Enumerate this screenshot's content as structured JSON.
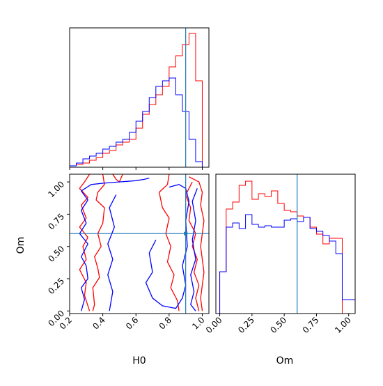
{
  "chart_data": {
    "type": "corner",
    "parameters": [
      "H0",
      "Om"
    ],
    "truth": {
      "H0": 0.9,
      "Om": 0.6
    },
    "colors": {
      "red": "#ff0000",
      "blue": "#0000ff",
      "truth": "#1f77b4"
    },
    "axes": {
      "H0": {
        "xlim": [
          0.2,
          1.04
        ],
        "ticks": [
          "0.2",
          "0.4",
          "0.6",
          "0.8",
          "1.0"
        ],
        "label": "H0"
      },
      "Om": {
        "xlim": [
          -0.03,
          1.05
        ],
        "ticks": [
          "0.00",
          "0.25",
          "0.50",
          "0.75",
          "1.00"
        ],
        "label": "Om"
      },
      "Om_y": {
        "ylim": [
          -0.02,
          1.06
        ],
        "ticks": [
          "0.00",
          "0.25",
          "0.50",
          "0.75",
          "1.00"
        ],
        "label": "Om"
      }
    },
    "series": [
      {
        "name": "",
        "color": "#ff0000",
        "hist_H0": {
          "edges": [
            0.2,
            0.24,
            0.28,
            0.32,
            0.36,
            0.4,
            0.44,
            0.48,
            0.52,
            0.56,
            0.6,
            0.64,
            0.68,
            0.72,
            0.76,
            0.8,
            0.84,
            0.88,
            0.92,
            0.96,
            1.0,
            1.04
          ],
          "values": [
            0.01,
            0.02,
            0.03,
            0.05,
            0.07,
            0.1,
            0.12,
            0.16,
            0.18,
            0.2,
            0.28,
            0.38,
            0.45,
            0.52,
            0.58,
            0.72,
            0.8,
            0.88,
            0.96,
            0.62,
            0.0
          ]
        },
        "hist_Om": {
          "edges": [
            0.0,
            0.05,
            0.1,
            0.15,
            0.2,
            0.25,
            0.3,
            0.35,
            0.4,
            0.45,
            0.5,
            0.55,
            0.6,
            0.65,
            0.7,
            0.75,
            0.8,
            0.85,
            0.9,
            0.95,
            1.0,
            1.05
          ],
          "values": [
            0.3,
            0.75,
            0.8,
            0.92,
            0.95,
            0.82,
            0.86,
            0.84,
            0.88,
            0.79,
            0.74,
            0.73,
            0.7,
            0.69,
            0.62,
            0.57,
            0.5,
            0.54,
            0.54,
            0.0,
            0.0
          ]
        }
      },
      {
        "name": "",
        "color": "#0000ff",
        "hist_H0": {
          "edges": [
            0.2,
            0.24,
            0.28,
            0.32,
            0.36,
            0.4,
            0.44,
            0.48,
            0.52,
            0.56,
            0.6,
            0.64,
            0.68,
            0.72,
            0.76,
            0.8,
            0.84,
            0.88,
            0.92,
            0.96,
            1.0,
            1.04
          ],
          "values": [
            0.01,
            0.03,
            0.06,
            0.08,
            0.1,
            0.13,
            0.15,
            0.18,
            0.2,
            0.25,
            0.33,
            0.4,
            0.5,
            0.58,
            0.62,
            0.64,
            0.52,
            0.4,
            0.2,
            0.04,
            0.0
          ]
        },
        "hist_Om": {
          "edges": [
            0.0,
            0.05,
            0.1,
            0.15,
            0.2,
            0.25,
            0.3,
            0.35,
            0.4,
            0.45,
            0.5,
            0.55,
            0.6,
            0.65,
            0.7,
            0.75,
            0.8,
            0.85,
            0.9,
            0.95,
            1.0,
            1.05
          ],
          "values": [
            0.3,
            0.62,
            0.65,
            0.61,
            0.71,
            0.64,
            0.62,
            0.63,
            0.62,
            0.62,
            0.67,
            0.68,
            0.66,
            0.69,
            0.61,
            0.59,
            0.56,
            0.52,
            0.43,
            0.1,
            0.1
          ]
        }
      }
    ],
    "contours_2d": [
      {
        "color": "#ff0000",
        "paths": [
          [
            [
              0.32,
              1.06
            ],
            [
              0.29,
              1.0
            ],
            [
              0.26,
              0.95
            ],
            [
              0.31,
              0.88
            ],
            [
              0.27,
              0.82
            ],
            [
              0.3,
              0.72
            ],
            [
              0.26,
              0.65
            ],
            [
              0.31,
              0.57
            ],
            [
              0.28,
              0.5
            ],
            [
              0.3,
              0.4
            ],
            [
              0.26,
              0.32
            ],
            [
              0.3,
              0.22
            ],
            [
              0.29,
              0.12
            ],
            [
              0.32,
              0.0
            ]
          ],
          [
            [
              0.4,
              1.06
            ],
            [
              0.41,
              0.98
            ],
            [
              0.37,
              0.92
            ],
            [
              0.36,
              0.86
            ],
            [
              0.41,
              0.8
            ],
            [
              0.4,
              0.68
            ],
            [
              0.37,
              0.6
            ],
            [
              0.39,
              0.5
            ],
            [
              0.35,
              0.42
            ],
            [
              0.37,
              0.33
            ],
            [
              0.38,
              0.26
            ],
            [
              0.34,
              0.18
            ],
            [
              0.35,
              0.05
            ],
            [
              0.34,
              0.0
            ]
          ],
          [
            [
              0.46,
              1.06
            ],
            [
              0.48,
              1.02
            ],
            [
              0.5,
              1.0
            ],
            [
              0.52,
              1.06
            ]
          ],
          [
            [
              0.8,
              1.06
            ],
            [
              0.79,
              0.98
            ],
            [
              0.74,
              0.92
            ],
            [
              0.76,
              0.8
            ],
            [
              0.8,
              0.72
            ],
            [
              0.78,
              0.6
            ],
            [
              0.81,
              0.5
            ],
            [
              0.79,
              0.38
            ],
            [
              0.83,
              0.28
            ],
            [
              0.81,
              0.18
            ],
            [
              0.85,
              0.08
            ],
            [
              0.86,
              0.0
            ]
          ],
          [
            [
              0.94,
              1.0
            ],
            [
              0.9,
              0.9
            ],
            [
              0.93,
              0.8
            ],
            [
              0.92,
              0.7
            ],
            [
              0.96,
              0.6
            ],
            [
              0.94,
              0.5
            ],
            [
              0.97,
              0.4
            ],
            [
              0.95,
              0.3
            ],
            [
              0.98,
              0.2
            ],
            [
              0.96,
              0.1
            ],
            [
              0.98,
              0.0
            ]
          ],
          [
            [
              0.92,
              1.04
            ],
            [
              0.98,
              1.0
            ],
            [
              1.0,
              0.92
            ],
            [
              0.99,
              0.82
            ],
            [
              1.01,
              0.7
            ],
            [
              0.99,
              0.5
            ],
            [
              1.01,
              0.3
            ],
            [
              0.99,
              0.1
            ],
            [
              1.0,
              0.0
            ]
          ]
        ]
      },
      {
        "color": "#0000ff",
        "paths": [
          [
            [
              0.3,
              0.35
            ],
            [
              0.27,
              0.42
            ],
            [
              0.31,
              0.52
            ],
            [
              0.26,
              0.6
            ],
            [
              0.3,
              0.68
            ],
            [
              0.27,
              0.78
            ],
            [
              0.31,
              0.86
            ],
            [
              0.27,
              0.93
            ],
            [
              0.33,
              0.98
            ],
            [
              0.4,
              0.99
            ],
            [
              0.5,
              1.0
            ],
            [
              0.6,
              1.01
            ],
            [
              0.65,
              1.02
            ],
            [
              0.68,
              1.03
            ]
          ],
          [
            [
              0.3,
              0.35
            ],
            [
              0.31,
              0.25
            ],
            [
              0.27,
              0.18
            ],
            [
              0.29,
              0.09
            ],
            [
              0.27,
              0.0
            ]
          ],
          [
            [
              0.48,
              0.9
            ],
            [
              0.44,
              0.8
            ],
            [
              0.47,
              0.65
            ],
            [
              0.43,
              0.52
            ],
            [
              0.46,
              0.4
            ],
            [
              0.43,
              0.28
            ],
            [
              0.46,
              0.15
            ],
            [
              0.44,
              0.0
            ]
          ],
          [
            [
              0.72,
              0.55
            ],
            [
              0.68,
              0.45
            ],
            [
              0.7,
              0.3
            ],
            [
              0.66,
              0.22
            ],
            [
              0.7,
              0.1
            ],
            [
              0.76,
              0.04
            ],
            [
              0.84,
              0.02
            ],
            [
              0.88,
              0.1
            ],
            [
              0.9,
              0.2
            ],
            [
              0.88,
              0.35
            ],
            [
              0.91,
              0.5
            ],
            [
              0.9,
              0.7
            ],
            [
              0.92,
              0.85
            ],
            [
              0.9,
              0.95
            ],
            [
              0.86,
              0.98
            ],
            [
              0.8,
              0.96
            ]
          ],
          [
            [
              0.97,
              0.95
            ],
            [
              0.94,
              0.85
            ],
            [
              0.96,
              0.7
            ],
            [
              0.94,
              0.55
            ],
            [
              0.96,
              0.4
            ],
            [
              0.93,
              0.28
            ],
            [
              0.95,
              0.15
            ],
            [
              0.93,
              0.05
            ],
            [
              0.96,
              0.0
            ]
          ]
        ]
      }
    ]
  }
}
